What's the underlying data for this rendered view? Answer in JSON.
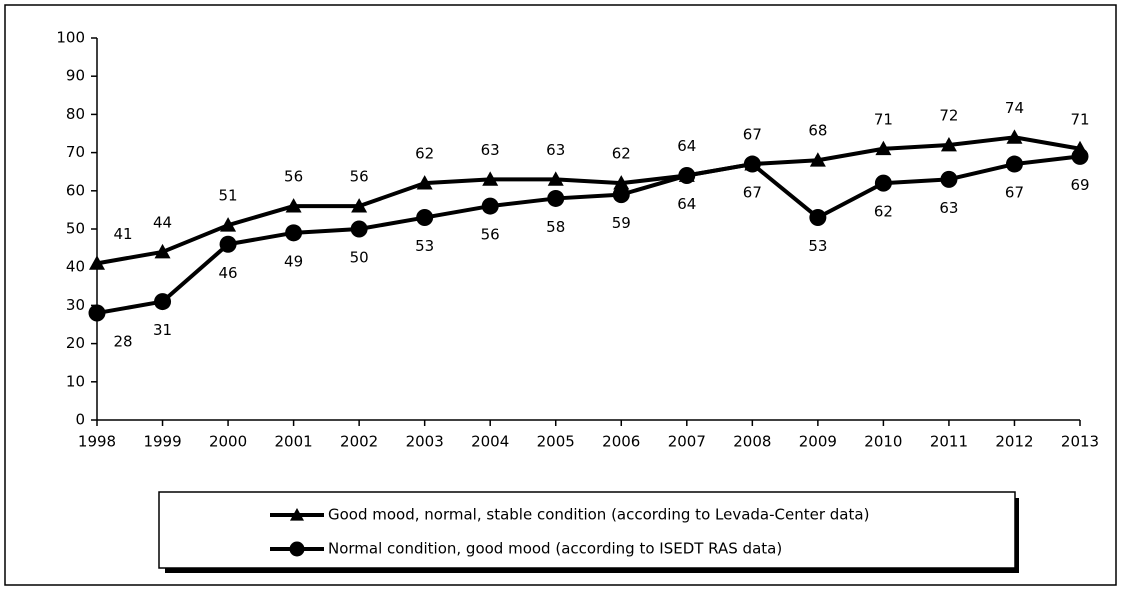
{
  "chart_data": {
    "type": "line",
    "x": [
      1998,
      1999,
      2000,
      2001,
      2002,
      2003,
      2004,
      2005,
      2006,
      2007,
      2008,
      2009,
      2010,
      2011,
      2012,
      2013
    ],
    "xlim": [
      1998,
      2013
    ],
    "xticks": [
      1998,
      1999,
      2000,
      2001,
      2002,
      2003,
      2004,
      2005,
      2006,
      2007,
      2008,
      2009,
      2010,
      2011,
      2012,
      2013
    ],
    "ylim": [
      0,
      100
    ],
    "yticks": [
      0,
      10,
      20,
      30,
      40,
      50,
      60,
      70,
      80,
      90,
      100
    ],
    "grid": false,
    "legend": "bottom",
    "series": [
      {
        "name": "Good mood, normal, stable condition (according to Levada-Center data)",
        "color": "#000000",
        "marker": "triangle",
        "label_position": "above",
        "values": [
          41,
          44,
          51,
          56,
          56,
          62,
          63,
          63,
          62,
          64,
          67,
          68,
          71,
          72,
          74,
          71
        ]
      },
      {
        "name": "Normal condition, good mood (according to ISEDT RAS data)",
        "color": "#000000",
        "marker": "circle",
        "label_position": "below",
        "values": [
          28,
          31,
          46,
          49,
          50,
          53,
          56,
          58,
          59,
          64,
          67,
          53,
          62,
          63,
          67,
          69
        ]
      }
    ]
  }
}
